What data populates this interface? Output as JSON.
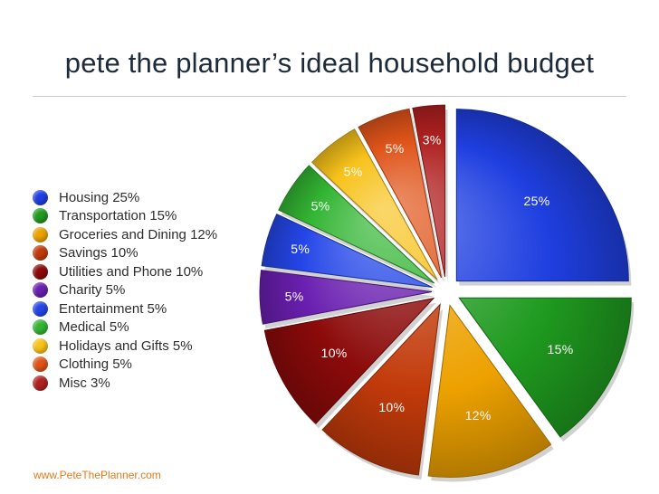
{
  "title": "pete the planner’s ideal household budget",
  "footer": "www.PeteThePlanner.com",
  "chart_data": {
    "type": "pie",
    "title": "pete the planner’s ideal household budget",
    "legend_position": "left",
    "slices": [
      {
        "name": "Housing",
        "legend": "Housing 25%",
        "value": 25,
        "label": "25%",
        "color": "#1f3fe0"
      },
      {
        "name": "Transportation",
        "legend": "Transportation 15%",
        "value": 15,
        "label": "15%",
        "color": "#1f9a1f"
      },
      {
        "name": "Groceries and Dining",
        "legend": "Groceries and Dining 12%",
        "value": 12,
        "label": "12%",
        "color": "#eda100"
      },
      {
        "name": "Savings",
        "legend": "Savings 10%",
        "value": 10,
        "label": "10%",
        "color": "#c23a0a"
      },
      {
        "name": "Utilities and Phone",
        "legend": "Utilities and Phone 10%",
        "value": 10,
        "label": "10%",
        "color": "#8c0a0a"
      },
      {
        "name": "Charity",
        "legend": "Charity 5%",
        "value": 5,
        "label": "5%",
        "color": "#6a1fb0"
      },
      {
        "name": "Entertainment",
        "legend": "Entertainment 5%",
        "value": 5,
        "label": "5%",
        "color": "#2446e8"
      },
      {
        "name": "Medical",
        "legend": "Medical 5%",
        "value": 5,
        "label": "5%",
        "color": "#33b533"
      },
      {
        "name": "Holidays and Gifts",
        "legend": "Holidays and Gifts 5%",
        "value": 5,
        "label": "5%",
        "color": "#f7c21a"
      },
      {
        "name": "Clothing",
        "legend": "Clothing 5%",
        "value": 5,
        "label": "5%",
        "color": "#e0541a"
      },
      {
        "name": "Misc",
        "legend": "Misc 3%",
        "value": 3,
        "label": "3%",
        "color": "#b02020"
      }
    ]
  }
}
